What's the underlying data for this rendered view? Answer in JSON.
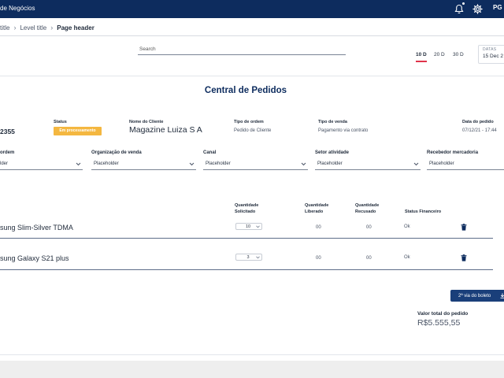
{
  "header": {
    "app_title": "de Negócios",
    "avatar_initials": "PG"
  },
  "breadcrumb": {
    "items": [
      "title",
      "Level title",
      "Page header"
    ]
  },
  "search": {
    "placeholder": "Search"
  },
  "date_ranges": [
    "10 D",
    "20 D",
    "30 D"
  ],
  "dates": {
    "label": "DATAS",
    "value": "15 Dec 2"
  },
  "page_title": "Central de Pedidos",
  "order": {
    "number": "2355",
    "status_label": "Status",
    "status_value": "Em processamento",
    "client_label": "Nome do Cliente",
    "client_value": "Magazine Luiza S A",
    "order_type_label": "Tipo de ordem",
    "order_type_value": "Pedido de Cliente",
    "sale_type_label": "Tipo de venda",
    "sale_type_value": "Pagamento via contrato",
    "date_label": "Data do pedido",
    "date_value": "07/12/21 - 17:44"
  },
  "filters": [
    {
      "label": "ordem",
      "value": "lder"
    },
    {
      "label": "Organização de venda",
      "value": "Placeholder"
    },
    {
      "label": "Canal",
      "value": "Placeholder"
    },
    {
      "label": "Setor atividade",
      "value": "Placeholder"
    },
    {
      "label": "Recebedor mercadoria",
      "value": "Placeholder"
    }
  ],
  "table": {
    "headers": {
      "qty_requested": "Quantidade Solicitado",
      "qty_released": "Quantidade Liberado",
      "qty_refused": "Quantidade Recusado",
      "financial_status": "Status Financeiro"
    },
    "rows": [
      {
        "product": "sung Slim-Silver TDMA",
        "qty": "10",
        "released": "00",
        "refused": "00",
        "status": "Ok"
      },
      {
        "product": "sung Galaxy S21 plus",
        "qty": "3",
        "released": "00",
        "refused": "00",
        "status": "Ok"
      }
    ]
  },
  "actions": {
    "boleto_label": "2ª via do boleto"
  },
  "total": {
    "label": "Valor total do pedido",
    "value": "R$5.555,55"
  },
  "colors": {
    "primary": "#0d2c5e",
    "accent": "#e0344b",
    "badge": "#f4b740",
    "button": "#1a3f7a"
  }
}
